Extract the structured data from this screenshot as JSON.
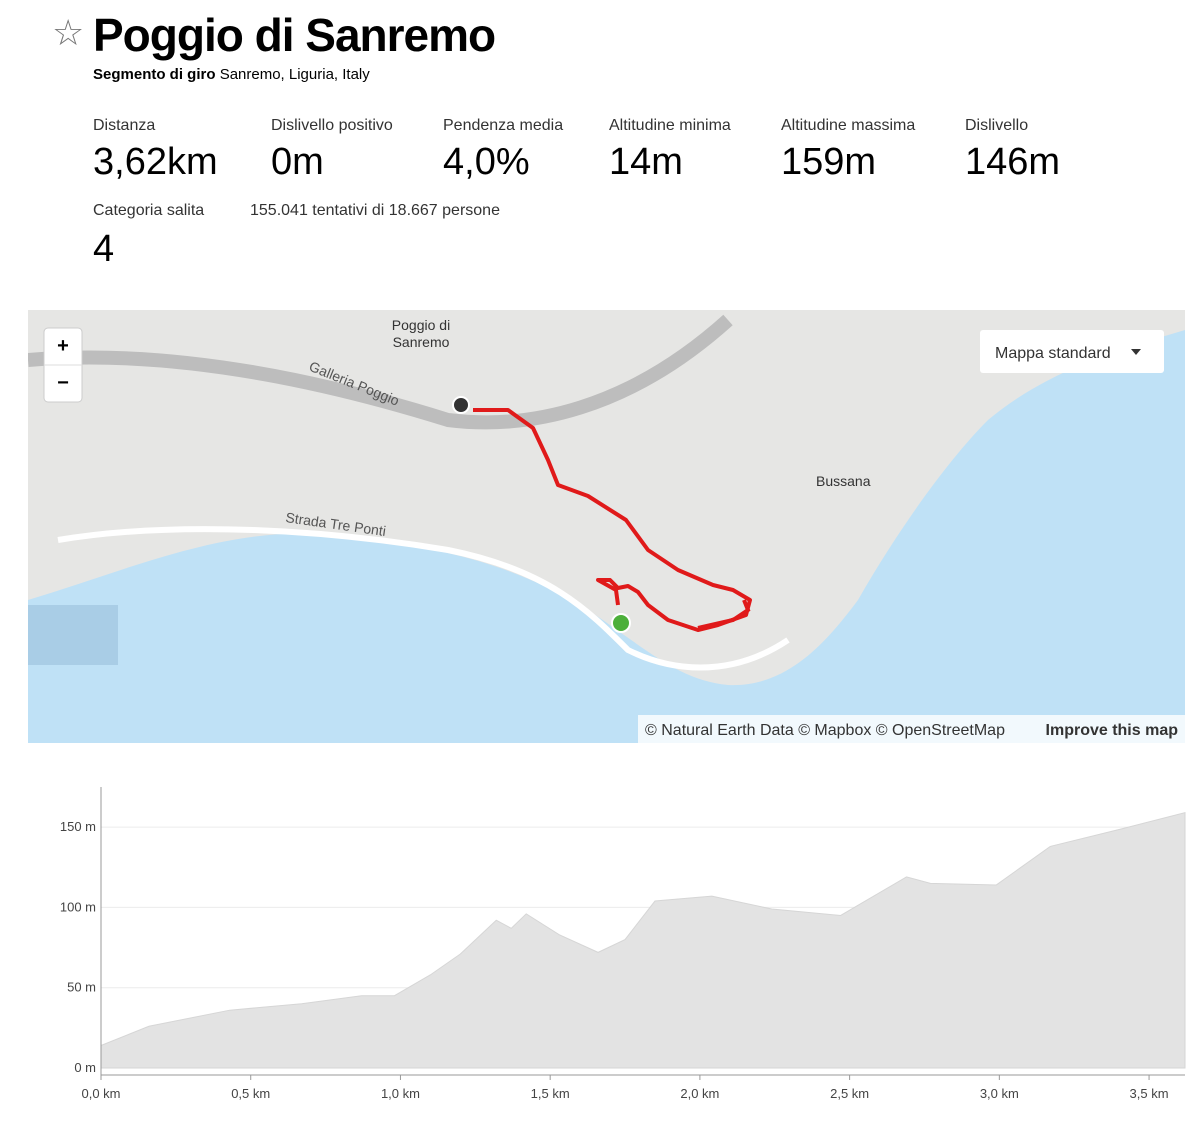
{
  "header": {
    "title": "Poggio di Sanremo",
    "subtitle_bold": "Segmento di giro",
    "subtitle": "Sanremo, Liguria, Italy"
  },
  "stats": [
    {
      "label": "Distanza",
      "value": "3,62km"
    },
    {
      "label": "Dislivello positivo",
      "value": "0m"
    },
    {
      "label": "Pendenza media",
      "value": "4,0%"
    },
    {
      "label": "Altitudine minima",
      "value": "14m"
    },
    {
      "label": "Altitudine massima",
      "value": "159m"
    },
    {
      "label": "Dislivello",
      "value": "146m"
    }
  ],
  "meta": {
    "category_label": "Categoria salita",
    "category_value": "4",
    "attempts": "155.041 tentativi di 18.667 persone"
  },
  "map": {
    "place_lines": [
      "Poggio di",
      "Sanremo"
    ],
    "road1": "Galleria Poggio",
    "road2": "Strada Tre Ponti",
    "town": "Bussana",
    "zoom_in": "+",
    "zoom_out": "−",
    "style_select": "Mappa standard",
    "attribution": "© Natural Earth Data © Mapbox © OpenStreetMap",
    "improve": "Improve this map"
  },
  "chart_data": {
    "type": "area",
    "color": "#e3e3e3",
    "grid": true,
    "x": [
      0,
      0.16,
      0.43,
      0.67,
      0.87,
      0.98,
      1.1,
      1.2,
      1.32,
      1.37,
      1.42,
      1.53,
      1.66,
      1.75,
      1.85,
      2.04,
      2.24,
      2.47,
      2.69,
      2.77,
      2.99,
      3.17,
      3.41,
      3.62
    ],
    "values": [
      14,
      26,
      36,
      40,
      45,
      45,
      58,
      71,
      92,
      87,
      96,
      83,
      72,
      80,
      104,
      107,
      99,
      95,
      119,
      115,
      114,
      138,
      149,
      159
    ],
    "xlim": [
      0,
      3.62
    ],
    "ylim": [
      0,
      175
    ],
    "xticks": [
      {
        "value": 0,
        "label": "0,0 km"
      },
      {
        "value": 0.5,
        "label": "0,5 km"
      },
      {
        "value": 1,
        "label": "1,0 km"
      },
      {
        "value": 1.5,
        "label": "1,5 km"
      },
      {
        "value": 2,
        "label": "2,0 km"
      },
      {
        "value": 2.5,
        "label": "2,5 km"
      },
      {
        "value": 3,
        "label": "3,0 km"
      },
      {
        "value": 3.5,
        "label": "3,5 km"
      }
    ],
    "yticks": [
      {
        "value": 0,
        "label": "0 m"
      },
      {
        "value": 50,
        "label": "50 m"
      },
      {
        "value": 100,
        "label": "100 m"
      },
      {
        "value": 150,
        "label": "150 m"
      }
    ]
  }
}
